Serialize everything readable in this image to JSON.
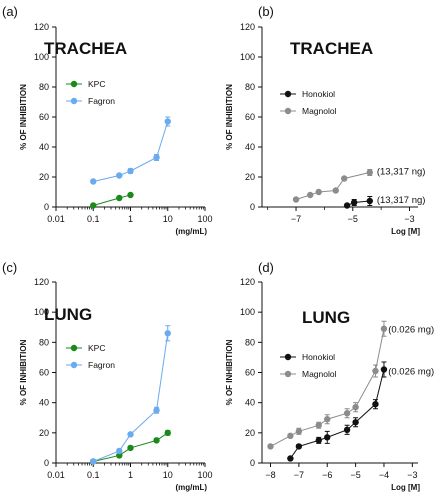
{
  "chart_data": [
    {
      "id": "a",
      "type": "line",
      "panel_label": "(a)",
      "title": "TRACHEA",
      "xlabel": "(mg/mL)",
      "ylabel": "% OF INHIBITION",
      "xscale": "log",
      "xlim": [
        0.01,
        100
      ],
      "ylim": [
        0,
        120
      ],
      "xticks": [
        0.01,
        0.1,
        1,
        10,
        100
      ],
      "xtick_labels": [
        "0.01",
        "0.1",
        "1",
        "10",
        "100"
      ],
      "yticks": [
        0,
        20,
        40,
        60,
        80,
        100,
        120
      ],
      "legend_position": "middle-left",
      "series": [
        {
          "name": "KPC",
          "color": "#1a8a1a",
          "x": [
            0.1,
            0.5,
            1
          ],
          "y": [
            1,
            6,
            8
          ],
          "err": [
            0,
            1,
            1
          ]
        },
        {
          "name": "Fagron",
          "color": "#6aaaf0",
          "x": [
            0.1,
            0.5,
            1,
            5,
            10
          ],
          "y": [
            17,
            21,
            24,
            33,
            57
          ],
          "err": [
            0,
            1,
            1.5,
            2,
            3
          ]
        }
      ],
      "annotations": []
    },
    {
      "id": "b",
      "type": "line",
      "panel_label": "(b)",
      "title": "TRACHEA",
      "xlabel": "Log [M]",
      "ylabel": "% OF INHIBITION",
      "xscale": "linear",
      "xlim": [
        -8.2,
        -2.7
      ],
      "ylim": [
        0,
        120
      ],
      "xticks": [
        -7,
        -5,
        -3
      ],
      "xtick_labels": [
        "−7",
        "−5",
        "−3"
      ],
      "yticks": [
        0,
        20,
        40,
        60,
        80,
        100,
        120
      ],
      "legend_position": "middle-left",
      "series": [
        {
          "name": "Honokiol",
          "color": "#111111",
          "x": [
            -5.2,
            -4.95,
            -4.4
          ],
          "y": [
            1,
            3,
            4
          ],
          "err": [
            0,
            2,
            3
          ]
        },
        {
          "name": "Magnolol",
          "color": "#8c8c8c",
          "x": [
            -7,
            -6.5,
            -6.2,
            -5.6,
            -5.3,
            -4.4
          ],
          "y": [
            5,
            8,
            10,
            11,
            19,
            23
          ],
          "err": [
            0,
            0.5,
            0.5,
            0.5,
            1,
            2
          ]
        }
      ],
      "annotations": [
        {
          "text": "(13,317 ng)",
          "x": -4.15,
          "y": 24
        },
        {
          "text": "(13,317 ng)",
          "x": -4.15,
          "y": 5
        }
      ]
    },
    {
      "id": "c",
      "type": "line",
      "panel_label": "(c)",
      "title": "LUNG",
      "xlabel": "(mg/mL)",
      "ylabel": "% OF INHIBITION",
      "xscale": "log",
      "xlim": [
        0.01,
        100
      ],
      "ylim": [
        0,
        120
      ],
      "xticks": [
        0.01,
        0.1,
        1,
        10,
        100
      ],
      "xtick_labels": [
        "0.01",
        "0.1",
        "1",
        "10",
        "100"
      ],
      "yticks": [
        0,
        20,
        40,
        60,
        80,
        100,
        120
      ],
      "legend_position": "middle-left",
      "series": [
        {
          "name": "KPC",
          "color": "#1a8a1a",
          "x": [
            0.1,
            0.5,
            1,
            5,
            10
          ],
          "y": [
            1,
            5,
            10,
            15,
            20
          ],
          "err": [
            0,
            1,
            1,
            1,
            1.5
          ]
        },
        {
          "name": "Fagron",
          "color": "#6aaaf0",
          "x": [
            0.1,
            0.5,
            1,
            5,
            10
          ],
          "y": [
            1,
            8,
            19,
            35,
            86
          ],
          "err": [
            0,
            1,
            1,
            2,
            5
          ]
        }
      ],
      "annotations": []
    },
    {
      "id": "d",
      "type": "line",
      "panel_label": "(d)",
      "title": "LUNG",
      "xlabel": "Log [M]",
      "ylabel": "% OF INHIBITION",
      "xscale": "linear",
      "xlim": [
        -8.3,
        -2.8
      ],
      "ylim": [
        0,
        120
      ],
      "xticks": [
        -8,
        -7,
        -6,
        -5,
        -4,
        -3
      ],
      "xtick_labels": [
        "−8",
        "−7",
        "−6",
        "−5",
        "−4",
        "−3"
      ],
      "yticks": [
        0,
        20,
        40,
        60,
        80,
        100,
        120
      ],
      "legend_position": "upper-left",
      "series": [
        {
          "name": "Honokiol",
          "color": "#111111",
          "x": [
            -7.3,
            -7,
            -6.3,
            -6,
            -5.3,
            -5,
            -4.3,
            -4
          ],
          "y": [
            3,
            11,
            15,
            17,
            22,
            27,
            39,
            62
          ],
          "err": [
            0,
            1,
            2,
            4,
            3,
            3,
            3,
            5
          ]
        },
        {
          "name": "Magnolol",
          "color": "#8c8c8c",
          "x": [
            -8,
            -7.3,
            -7,
            -6.3,
            -6,
            -5.3,
            -5,
            -4.3,
            -4
          ],
          "y": [
            11,
            18,
            21,
            25,
            29,
            33,
            37,
            61,
            89
          ],
          "err": [
            0,
            1,
            2,
            2,
            3,
            3,
            3,
            4,
            5
          ]
        }
      ],
      "annotations": [
        {
          "text": "(0.026 mg)",
          "x": -3.85,
          "y": 89
        },
        {
          "text": "(0.026 mg)",
          "x": -3.85,
          "y": 61
        }
      ]
    }
  ]
}
